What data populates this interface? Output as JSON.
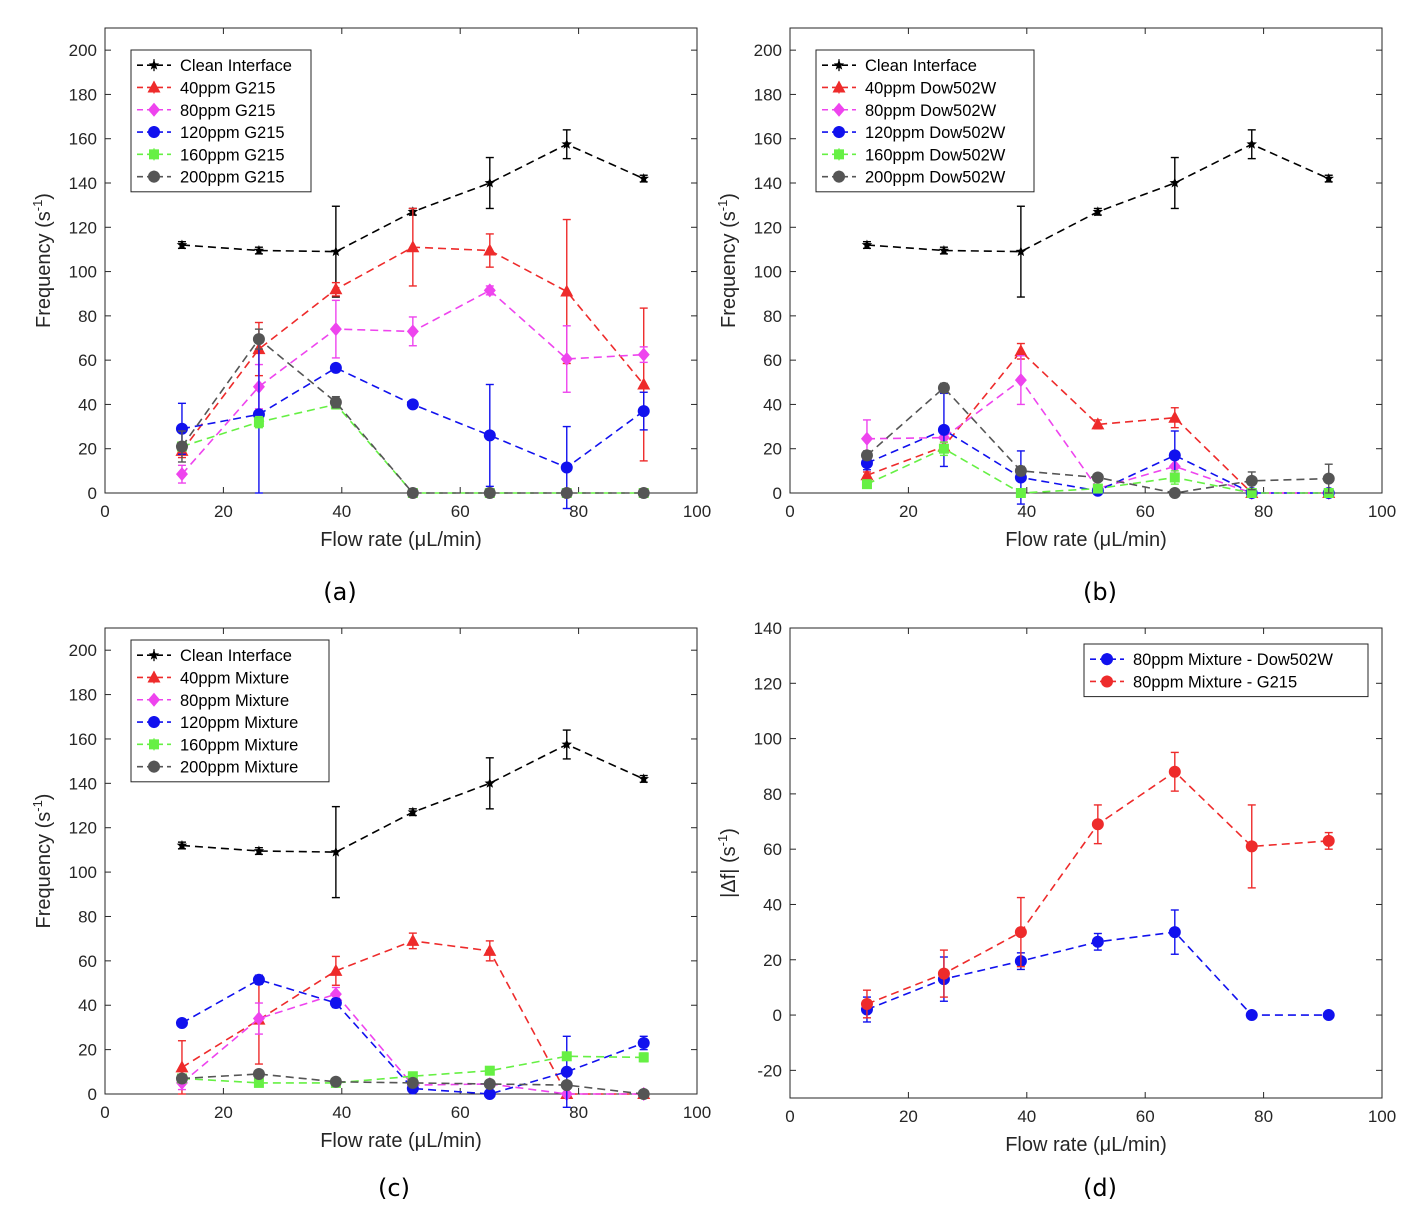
{
  "colors": {
    "clean": "#000000",
    "c40": "#ee2b2b",
    "c80": "#ee44ee",
    "c120": "#1111ee",
    "c160": "#66f044",
    "c200": "#555555"
  },
  "chart_data": [
    {
      "type": "line",
      "caption": "(a)",
      "xlabel": "Flow rate (μL/min)",
      "ylabel": "Frequency (s-1)",
      "xlim": [
        0,
        100
      ],
      "ylim": [
        0,
        210
      ],
      "xticks": [
        0,
        20,
        40,
        60,
        80,
        100
      ],
      "yticks": [
        0,
        20,
        40,
        60,
        80,
        100,
        120,
        140,
        160,
        180,
        200
      ],
      "legend_position": "top-left",
      "x": [
        13,
        26,
        39,
        52,
        65,
        78,
        91
      ],
      "series": [
        {
          "name": "Clean Interface",
          "color": "#000000",
          "marker": "star",
          "values": [
            112,
            109.5,
            109,
            127,
            140,
            157.5,
            142
          ],
          "errors": [
            1.5,
            1.5,
            20.5,
            1.5,
            11.5,
            6.5,
            1.5
          ]
        },
        {
          "name": "40ppm G215",
          "color": "#ee2b2b",
          "marker": "triangle",
          "values": [
            19,
            65,
            92,
            111,
            109.5,
            91,
            49
          ],
          "errors": [
            3,
            12,
            3,
            17.5,
            7.5,
            32.5,
            34.5
          ]
        },
        {
          "name": "80ppm G215",
          "color": "#ee44ee",
          "marker": "diamond",
          "values": [
            8.5,
            48,
            74,
            73,
            91.5,
            60.5,
            62.5
          ],
          "errors": [
            4,
            10,
            13,
            6.5,
            2,
            15,
            3.5
          ]
        },
        {
          "name": "120ppm G215",
          "color": "#1111ee",
          "marker": "circle",
          "values": [
            29,
            35.5,
            56.5,
            40,
            26,
            11.5,
            37
          ],
          "errors": [
            11.5,
            35.5,
            1.5,
            1.5,
            23,
            18.5,
            8.5
          ]
        },
        {
          "name": "160ppm G215",
          "color": "#66f044",
          "marker": "square",
          "values": [
            21,
            32,
            40,
            0,
            0,
            0,
            0
          ],
          "errors": [
            2,
            2.5,
            2,
            0,
            0,
            0,
            0
          ]
        },
        {
          "name": "200ppm G215",
          "color": "#555555",
          "marker": "circle",
          "values": [
            21,
            69.5,
            41,
            0,
            0,
            0,
            0
          ],
          "errors": [
            7,
            4.5,
            2.5,
            0,
            0,
            0,
            0
          ]
        }
      ]
    },
    {
      "type": "line",
      "caption": "(b)",
      "xlabel": "Flow rate (μL/min)",
      "ylabel": "Frequency (s-1)",
      "xlim": [
        0,
        100
      ],
      "ylim": [
        0,
        210
      ],
      "xticks": [
        0,
        20,
        40,
        60,
        80,
        100
      ],
      "yticks": [
        0,
        20,
        40,
        60,
        80,
        100,
        120,
        140,
        160,
        180,
        200
      ],
      "legend_position": "top-left",
      "x": [
        13,
        26,
        39,
        52,
        65,
        78,
        91
      ],
      "series": [
        {
          "name": "Clean Interface",
          "color": "#000000",
          "marker": "star",
          "values": [
            112,
            109.5,
            109,
            127,
            140,
            157.5,
            142
          ],
          "errors": [
            1.5,
            1.5,
            20.5,
            1.5,
            11.5,
            6.5,
            1.5
          ]
        },
        {
          "name": "40ppm Dow502W",
          "color": "#ee2b2b",
          "marker": "triangle",
          "values": [
            8,
            21,
            64,
            31,
            34,
            0,
            0
          ],
          "errors": [
            1.5,
            2,
            3.5,
            2,
            4.5,
            0,
            0
          ]
        },
        {
          "name": "80ppm Dow502W",
          "color": "#ee44ee",
          "marker": "diamond",
          "values": [
            24.5,
            25,
            51,
            2,
            12,
            0,
            0
          ],
          "errors": [
            8.5,
            3,
            11,
            1,
            3,
            0,
            0
          ]
        },
        {
          "name": "120ppm Dow502W",
          "color": "#1111ee",
          "marker": "circle",
          "values": [
            13.5,
            28.5,
            7,
            1,
            17,
            0,
            0
          ],
          "errors": [
            3,
            16.5,
            12,
            1,
            11,
            0,
            0
          ]
        },
        {
          "name": "160ppm Dow502W",
          "color": "#66f044",
          "marker": "square",
          "values": [
            4,
            20,
            0,
            2,
            7,
            0,
            0
          ],
          "errors": [
            1,
            3,
            0,
            1,
            3,
            0,
            0
          ]
        },
        {
          "name": "200ppm Dow502W",
          "color": "#555555",
          "marker": "circle",
          "values": [
            17,
            47.5,
            10,
            7,
            0,
            5.5,
            6.5
          ],
          "errors": [
            2,
            2,
            2,
            1,
            0,
            4,
            6.5
          ]
        }
      ]
    },
    {
      "type": "line",
      "caption": "(c)",
      "xlabel": "Flow rate (μL/min)",
      "ylabel": "Frequency (s-1)",
      "xlim": [
        0,
        100
      ],
      "ylim": [
        0,
        210
      ],
      "xticks": [
        0,
        20,
        40,
        60,
        80,
        100
      ],
      "yticks": [
        0,
        20,
        40,
        60,
        80,
        100,
        120,
        140,
        160,
        180,
        200
      ],
      "legend_position": "top-left",
      "x": [
        13,
        26,
        39,
        52,
        65,
        78,
        91
      ],
      "series": [
        {
          "name": "Clean Interface",
          "color": "#000000",
          "marker": "star",
          "values": [
            112,
            109.5,
            109,
            127,
            140,
            157.5,
            142
          ],
          "errors": [
            1.5,
            1.5,
            20.5,
            1.5,
            11.5,
            6.5,
            1.5
          ]
        },
        {
          "name": "40ppm Mixture",
          "color": "#ee2b2b",
          "marker": "triangle",
          "values": [
            12,
            33.5,
            55.5,
            69,
            64.5,
            0,
            0
          ],
          "errors": [
            12,
            20,
            6.5,
            3.5,
            4.5,
            0,
            0
          ]
        },
        {
          "name": "80ppm Mixture",
          "color": "#ee44ee",
          "marker": "diamond",
          "values": [
            5,
            34,
            45,
            4,
            4.5,
            0,
            0
          ],
          "errors": [
            3,
            7,
            3,
            1,
            1,
            0,
            0
          ]
        },
        {
          "name": "120ppm Mixture",
          "color": "#1111ee",
          "marker": "circle",
          "values": [
            32,
            51.5,
            41,
            2.5,
            0,
            10,
            23
          ],
          "errors": [
            1.5,
            2,
            2,
            1,
            0,
            16,
            3
          ]
        },
        {
          "name": "160ppm Mixture",
          "color": "#66f044",
          "marker": "square",
          "values": [
            7,
            5,
            5,
            8,
            10.5,
            17,
            16.5
          ],
          "errors": [
            1,
            1,
            1,
            1,
            1,
            1.5,
            2
          ]
        },
        {
          "name": "200ppm Mixture",
          "color": "#555555",
          "marker": "circle",
          "values": [
            7,
            9,
            5.5,
            5,
            4.5,
            4,
            0
          ],
          "errors": [
            1,
            1,
            1,
            1,
            1,
            1,
            0
          ]
        }
      ]
    },
    {
      "type": "line",
      "caption": "(d)",
      "xlabel": "Flow rate (μL/min)",
      "ylabel": "|Δf| (s-1)",
      "xlim": [
        0,
        100
      ],
      "ylim": [
        -30,
        140
      ],
      "xticks": [
        0,
        20,
        40,
        60,
        80,
        100
      ],
      "yticks": [
        -20,
        0,
        20,
        40,
        60,
        80,
        100,
        120,
        140
      ],
      "legend_position": "top-right",
      "x": [
        13,
        26,
        39,
        52,
        65,
        78,
        91
      ],
      "series": [
        {
          "name": "80ppm Mixture - Dow502W",
          "color": "#1111ee",
          "marker": "circle",
          "values": [
            2,
            13,
            19.5,
            26.5,
            30,
            0,
            0
          ],
          "errors": [
            4.5,
            8,
            3,
            3,
            8,
            0,
            0
          ]
        },
        {
          "name": "80ppm Mixture - G215",
          "color": "#ee2b2b",
          "marker": "circle",
          "values": [
            4,
            15,
            30,
            69,
            88,
            61,
            63
          ],
          "errors": [
            5,
            8.5,
            12.5,
            7,
            7,
            15,
            3
          ]
        }
      ]
    }
  ]
}
